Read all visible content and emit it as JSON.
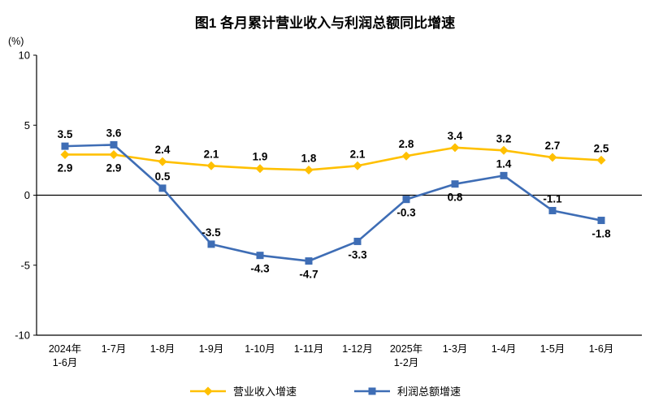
{
  "title": "图1 各月累计营业收入与利润总额同比增速",
  "chart_data": {
    "type": "line",
    "title": "图1 各月累计营业收入与利润总额同比增速",
    "unit_label": "(%)",
    "ylim": [
      -10,
      10
    ],
    "yticks": [
      10,
      5,
      0,
      -5,
      -10
    ],
    "grid": false,
    "legend_position": "bottom",
    "x_categories": [
      [
        "2024年",
        "1-6月"
      ],
      [
        "1-7月"
      ],
      [
        "1-8月"
      ],
      [
        "1-9月"
      ],
      [
        "1-10月"
      ],
      [
        "1-11月"
      ],
      [
        "1-12月"
      ],
      [
        "2025年",
        "1-2月"
      ],
      [
        "1-3月"
      ],
      [
        "1-4月"
      ],
      [
        "1-5月"
      ],
      [
        "1-6月"
      ]
    ],
    "series": [
      {
        "name": "营业收入增速",
        "color": "#FFC000",
        "marker": "diamond",
        "values": [
          2.9,
          2.9,
          2.4,
          2.1,
          1.9,
          1.8,
          2.1,
          2.8,
          3.4,
          3.2,
          2.7,
          2.5
        ],
        "label_positions": [
          "below",
          "below",
          "above",
          "above",
          "above",
          "above",
          "above",
          "above",
          "above",
          "above",
          "above",
          "above"
        ]
      },
      {
        "name": "利润总额增速",
        "color": "#3E6DB5",
        "marker": "square",
        "values": [
          3.5,
          3.6,
          0.5,
          -3.5,
          -4.3,
          -4.7,
          -3.3,
          -0.3,
          0.8,
          1.4,
          -1.1,
          -1.8
        ],
        "label_positions": [
          "above",
          "above",
          "above",
          "above",
          "below",
          "below",
          "below",
          "below",
          "below",
          "above",
          "above",
          "below"
        ]
      }
    ]
  }
}
